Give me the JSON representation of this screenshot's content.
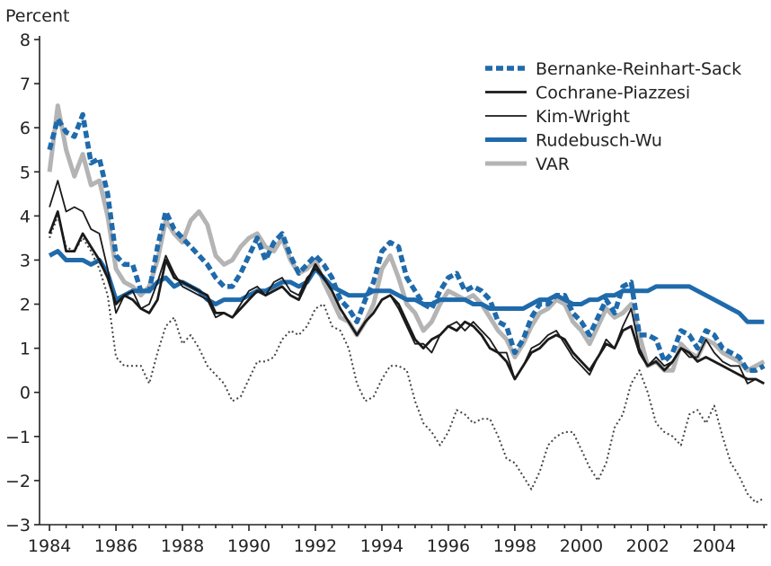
{
  "chart_data": {
    "type": "line",
    "ylabel": "Percent",
    "xlabel": "",
    "title": "",
    "ylim": [
      -3,
      8
    ],
    "xlim": [
      1983.7,
      2005.6
    ],
    "yticks": [
      -3,
      -2,
      -1,
      0,
      1,
      2,
      3,
      4,
      5,
      6,
      7,
      8
    ],
    "ytick_labels": [
      "−3",
      "−2",
      "−1",
      "0",
      "1",
      "2",
      "3",
      "4",
      "5",
      "6",
      "7",
      "8"
    ],
    "xticks": [
      1984,
      1986,
      1988,
      1990,
      1992,
      1994,
      1996,
      1998,
      2000,
      2002,
      2004
    ],
    "xtick_labels": [
      "1984",
      "1986",
      "1988",
      "1990",
      "1992",
      "1994",
      "1996",
      "1998",
      "2000",
      "2002",
      "2004"
    ],
    "legend_position": "top-right",
    "series": [
      {
        "name": "Bernanke-Reinhart-Sack",
        "color": "#1f6aab",
        "style": "dashed",
        "x": [
          1984.0,
          1984.25,
          1984.5,
          1984.75,
          1985.0,
          1985.25,
          1985.5,
          1985.75,
          1986.0,
          1986.25,
          1986.5,
          1986.75,
          1987.0,
          1987.25,
          1987.5,
          1987.75,
          1988.0,
          1988.25,
          1988.5,
          1988.75,
          1989.0,
          1989.25,
          1989.5,
          1989.75,
          1990.0,
          1990.25,
          1990.5,
          1990.75,
          1991.0,
          1991.25,
          1991.5,
          1991.75,
          1992.0,
          1992.25,
          1992.5,
          1992.75,
          1993.0,
          1993.25,
          1993.5,
          1993.75,
          1994.0,
          1994.25,
          1994.5,
          1994.75,
          1995.0,
          1995.25,
          1995.5,
          1995.75,
          1996.0,
          1996.25,
          1996.5,
          1996.75,
          1997.0,
          1997.25,
          1997.5,
          1997.75,
          1998.0,
          1998.25,
          1998.5,
          1998.75,
          1999.0,
          1999.25,
          1999.5,
          1999.75,
          2000.0,
          2000.25,
          2000.5,
          2000.75,
          2001.0,
          2001.25,
          2001.5,
          2001.75,
          2002.0,
          2002.25,
          2002.5,
          2002.75,
          2003.0,
          2003.25,
          2003.5,
          2003.75,
          2004.0,
          2004.25,
          2004.5,
          2004.75,
          2005.0,
          2005.25,
          2005.5
        ],
        "values": [
          5.5,
          6.2,
          5.9,
          5.8,
          6.3,
          5.2,
          5.3,
          4.5,
          3.1,
          2.9,
          2.9,
          2.3,
          2.3,
          3.3,
          4.1,
          3.7,
          3.5,
          3.3,
          3.1,
          2.9,
          2.6,
          2.4,
          2.4,
          2.7,
          3.1,
          3.5,
          3.0,
          3.4,
          3.6,
          3.1,
          2.7,
          2.9,
          3.1,
          2.9,
          2.6,
          2.1,
          1.9,
          1.6,
          2.1,
          2.5,
          3.2,
          3.4,
          3.3,
          2.6,
          2.3,
          2.0,
          1.9,
          2.3,
          2.6,
          2.7,
          2.3,
          2.4,
          2.3,
          2.1,
          1.6,
          1.5,
          0.9,
          1.2,
          1.7,
          2.0,
          2.0,
          2.2,
          2.2,
          1.8,
          1.6,
          1.3,
          1.7,
          2.1,
          1.8,
          2.4,
          2.5,
          1.3,
          1.3,
          1.2,
          0.7,
          0.9,
          1.4,
          1.3,
          1.0,
          1.4,
          1.3,
          1.0,
          0.9,
          0.8,
          0.5,
          0.5,
          0.6
        ]
      },
      {
        "name": "Cochrane-Piazzesi",
        "color": "#1a1a1a",
        "style": "solid-medium",
        "x": [
          1984.0,
          1984.25,
          1984.5,
          1984.75,
          1985.0,
          1985.25,
          1985.5,
          1985.75,
          1986.0,
          1986.25,
          1986.5,
          1986.75,
          1987.0,
          1987.25,
          1987.5,
          1987.75,
          1988.0,
          1988.25,
          1988.5,
          1988.75,
          1989.0,
          1989.25,
          1989.5,
          1989.75,
          1990.0,
          1990.25,
          1990.5,
          1990.75,
          1991.0,
          1991.25,
          1991.5,
          1991.75,
          1992.0,
          1992.25,
          1992.5,
          1992.75,
          1993.0,
          1993.25,
          1993.5,
          1993.75,
          1994.0,
          1994.25,
          1994.5,
          1994.75,
          1995.0,
          1995.25,
          1995.5,
          1995.75,
          1996.0,
          1996.25,
          1996.5,
          1996.75,
          1997.0,
          1997.25,
          1997.5,
          1997.75,
          1998.0,
          1998.25,
          1998.5,
          1998.75,
          1999.0,
          1999.25,
          1999.5,
          1999.75,
          2000.0,
          2000.25,
          2000.5,
          2000.75,
          2001.0,
          2001.25,
          2001.5,
          2001.75,
          2002.0,
          2002.25,
          2002.5,
          2002.75,
          2003.0,
          2003.25,
          2003.5,
          2003.75,
          2004.0,
          2004.25,
          2004.5,
          2004.75,
          2005.0,
          2005.25,
          2005.5
        ],
        "values": [
          3.6,
          4.1,
          3.2,
          3.2,
          3.6,
          3.3,
          3.0,
          2.6,
          2.0,
          2.2,
          2.1,
          1.9,
          1.8,
          2.1,
          3.0,
          2.6,
          2.5,
          2.4,
          2.3,
          2.2,
          1.8,
          1.8,
          1.7,
          1.9,
          2.1,
          2.3,
          2.2,
          2.3,
          2.4,
          2.2,
          2.1,
          2.5,
          2.9,
          2.6,
          2.3,
          1.9,
          1.6,
          1.3,
          1.6,
          1.8,
          2.1,
          2.2,
          2.0,
          1.6,
          1.2,
          1.0,
          1.2,
          1.3,
          1.5,
          1.4,
          1.6,
          1.5,
          1.3,
          1.0,
          0.9,
          0.7,
          0.3,
          0.6,
          0.9,
          1.0,
          1.2,
          1.3,
          1.2,
          0.9,
          0.7,
          0.5,
          0.8,
          1.1,
          1.0,
          1.4,
          1.5,
          0.9,
          0.6,
          0.7,
          0.5,
          0.7,
          1.0,
          0.9,
          0.7,
          0.8,
          0.7,
          0.6,
          0.5,
          0.4,
          0.3,
          0.3,
          0.2
        ]
      },
      {
        "name": "Kim-Wright",
        "color": "#1a1a1a",
        "style": "solid-thin",
        "x": [
          1984.0,
          1984.25,
          1984.5,
          1984.75,
          1985.0,
          1985.25,
          1985.5,
          1985.75,
          1986.0,
          1986.25,
          1986.5,
          1986.75,
          1987.0,
          1987.25,
          1987.5,
          1987.75,
          1988.0,
          1988.25,
          1988.5,
          1988.75,
          1989.0,
          1989.25,
          1989.5,
          1989.75,
          1990.0,
          1990.25,
          1990.5,
          1990.75,
          1991.0,
          1991.25,
          1991.5,
          1991.75,
          1992.0,
          1992.25,
          1992.5,
          1992.75,
          1993.0,
          1993.25,
          1993.5,
          1993.75,
          1994.0,
          1994.25,
          1994.5,
          1994.75,
          1995.0,
          1995.25,
          1995.5,
          1995.75,
          1996.0,
          1996.25,
          1996.5,
          1996.75,
          1997.0,
          1997.25,
          1997.5,
          1997.75,
          1998.0,
          1998.25,
          1998.5,
          1998.75,
          1999.0,
          1999.25,
          1999.5,
          1999.75,
          2000.0,
          2000.25,
          2000.5,
          2000.75,
          2001.0,
          2001.25,
          2001.5,
          2001.75,
          2002.0,
          2002.25,
          2002.5,
          2002.75,
          2003.0,
          2003.25,
          2003.5,
          2003.75,
          2004.0,
          2004.25,
          2004.5,
          2004.75,
          2005.0,
          2005.25,
          2005.5
        ],
        "values": [
          4.2,
          4.8,
          4.1,
          4.2,
          4.1,
          3.7,
          3.6,
          2.8,
          1.8,
          2.2,
          2.3,
          1.9,
          2.0,
          2.5,
          3.1,
          2.7,
          2.4,
          2.3,
          2.2,
          2.1,
          1.7,
          1.8,
          1.7,
          2.0,
          2.3,
          2.4,
          2.2,
          2.5,
          2.6,
          2.3,
          2.2,
          2.6,
          2.8,
          2.6,
          2.3,
          1.9,
          1.6,
          1.3,
          1.6,
          1.8,
          2.1,
          2.2,
          1.9,
          1.5,
          1.1,
          1.1,
          0.9,
          1.3,
          1.5,
          1.6,
          1.4,
          1.6,
          1.4,
          1.2,
          0.9,
          0.9,
          0.3,
          0.6,
          1.0,
          1.1,
          1.3,
          1.4,
          1.1,
          0.8,
          0.6,
          0.4,
          0.8,
          1.2,
          1.0,
          1.5,
          1.9,
          1.0,
          0.6,
          0.8,
          0.6,
          0.7,
          1.0,
          0.8,
          0.8,
          1.2,
          0.9,
          0.7,
          0.6,
          0.6,
          0.2,
          0.3,
          0.2
        ]
      },
      {
        "name": "Rudebusch-Wu",
        "color": "#1f6aab",
        "style": "solid-thick",
        "x": [
          1984.0,
          1984.25,
          1984.5,
          1984.75,
          1985.0,
          1985.25,
          1985.5,
          1985.75,
          1986.0,
          1986.25,
          1986.5,
          1986.75,
          1987.0,
          1987.25,
          1987.5,
          1987.75,
          1988.0,
          1988.25,
          1988.5,
          1988.75,
          1989.0,
          1989.25,
          1989.5,
          1989.75,
          1990.0,
          1990.25,
          1990.5,
          1990.75,
          1991.0,
          1991.25,
          1991.5,
          1991.75,
          1992.0,
          1992.25,
          1992.5,
          1992.75,
          1993.0,
          1993.25,
          1993.5,
          1993.75,
          1994.0,
          1994.25,
          1994.5,
          1994.75,
          1995.0,
          1995.25,
          1995.5,
          1995.75,
          1996.0,
          1996.25,
          1996.5,
          1996.75,
          1997.0,
          1997.25,
          1997.5,
          1997.75,
          1998.0,
          1998.25,
          1998.5,
          1998.75,
          1999.0,
          1999.25,
          1999.5,
          1999.75,
          2000.0,
          2000.25,
          2000.5,
          2000.75,
          2001.0,
          2001.25,
          2001.5,
          2001.75,
          2002.0,
          2002.25,
          2002.5,
          2002.75,
          2003.0,
          2003.25,
          2003.5,
          2003.75,
          2004.0,
          2004.25,
          2004.5,
          2004.75,
          2005.0,
          2005.25,
          2005.5
        ],
        "values": [
          3.1,
          3.2,
          3.0,
          3.0,
          3.0,
          2.9,
          3.0,
          2.7,
          2.1,
          2.2,
          2.3,
          2.3,
          2.3,
          2.5,
          2.6,
          2.4,
          2.5,
          2.4,
          2.3,
          2.1,
          2.0,
          2.1,
          2.1,
          2.1,
          2.2,
          2.3,
          2.3,
          2.4,
          2.5,
          2.5,
          2.4,
          2.5,
          2.8,
          2.6,
          2.4,
          2.3,
          2.2,
          2.2,
          2.2,
          2.3,
          2.3,
          2.3,
          2.2,
          2.1,
          2.1,
          2.0,
          2.0,
          2.1,
          2.1,
          2.1,
          2.1,
          2.0,
          2.0,
          1.9,
          1.9,
          1.9,
          1.9,
          1.9,
          2.0,
          2.1,
          2.1,
          2.2,
          2.1,
          2.0,
          2.0,
          2.1,
          2.1,
          2.2,
          2.2,
          2.3,
          2.3,
          2.3,
          2.3,
          2.4,
          2.4,
          2.4,
          2.4,
          2.4,
          2.3,
          2.2,
          2.1,
          2.0,
          1.9,
          1.8,
          1.6,
          1.6,
          1.6
        ]
      },
      {
        "name": "VAR",
        "color": "#b4b4b4",
        "style": "solid-thick",
        "x": [
          1984.0,
          1984.25,
          1984.5,
          1984.75,
          1985.0,
          1985.25,
          1985.5,
          1985.75,
          1986.0,
          1986.25,
          1986.5,
          1986.75,
          1987.0,
          1987.25,
          1987.5,
          1987.75,
          1988.0,
          1988.25,
          1988.5,
          1988.75,
          1989.0,
          1989.25,
          1989.5,
          1989.75,
          1990.0,
          1990.25,
          1990.5,
          1990.75,
          1991.0,
          1991.25,
          1991.5,
          1991.75,
          1992.0,
          1992.25,
          1992.5,
          1992.75,
          1993.0,
          1993.25,
          1993.5,
          1993.75,
          1994.0,
          1994.25,
          1994.5,
          1994.75,
          1995.0,
          1995.25,
          1995.5,
          1995.75,
          1996.0,
          1996.25,
          1996.5,
          1996.75,
          1997.0,
          1997.25,
          1997.5,
          1997.75,
          1998.0,
          1998.25,
          1998.5,
          1998.75,
          1999.0,
          1999.25,
          1999.5,
          1999.75,
          2000.0,
          2000.25,
          2000.5,
          2000.75,
          2001.0,
          2001.25,
          2001.5,
          2001.75,
          2002.0,
          2002.25,
          2002.5,
          2002.75,
          2003.0,
          2003.25,
          2003.5,
          2003.75,
          2004.0,
          2004.25,
          2004.5,
          2004.75,
          2005.0,
          2005.25,
          2005.5
        ],
        "values": [
          5.0,
          6.5,
          5.5,
          4.9,
          5.4,
          4.7,
          4.8,
          4.0,
          2.8,
          2.5,
          2.4,
          2.2,
          2.4,
          3.0,
          3.9,
          3.6,
          3.4,
          3.9,
          4.1,
          3.8,
          3.1,
          2.9,
          3.0,
          3.3,
          3.5,
          3.6,
          3.3,
          3.2,
          3.5,
          3.0,
          2.7,
          2.8,
          3.0,
          2.5,
          2.1,
          1.7,
          1.6,
          1.3,
          1.6,
          2.0,
          2.8,
          3.1,
          2.6,
          2.0,
          1.8,
          1.4,
          1.6,
          2.0,
          2.3,
          2.2,
          2.1,
          2.2,
          2.0,
          1.7,
          1.4,
          1.2,
          0.8,
          1.1,
          1.5,
          1.8,
          1.9,
          2.1,
          2.0,
          1.6,
          1.4,
          1.1,
          1.5,
          1.9,
          1.7,
          1.8,
          2.0,
          1.3,
          0.6,
          0.7,
          0.5,
          0.5,
          1.1,
          0.9,
          0.8,
          1.2,
          1.1,
          0.9,
          0.8,
          0.7,
          0.5,
          0.6,
          0.7
        ]
      },
      {
        "name": "",
        "color": "#444444",
        "style": "dotted",
        "x": [
          1984.0,
          1984.25,
          1984.5,
          1984.75,
          1985.0,
          1985.25,
          1985.5,
          1985.75,
          1986.0,
          1986.25,
          1986.5,
          1986.75,
          1987.0,
          1987.25,
          1987.5,
          1987.75,
          1988.0,
          1988.25,
          1988.5,
          1988.75,
          1989.0,
          1989.25,
          1989.5,
          1989.75,
          1990.0,
          1990.25,
          1990.5,
          1990.75,
          1991.0,
          1991.25,
          1991.5,
          1991.75,
          1992.0,
          1992.25,
          1992.5,
          1992.75,
          1993.0,
          1993.25,
          1993.5,
          1993.75,
          1994.0,
          1994.25,
          1994.5,
          1994.75,
          1995.0,
          1995.25,
          1995.5,
          1995.75,
          1996.0,
          1996.25,
          1996.5,
          1996.75,
          1997.0,
          1997.25,
          1997.5,
          1997.75,
          1998.0,
          1998.25,
          1998.5,
          1998.75,
          1999.0,
          1999.25,
          1999.5,
          1999.75,
          2000.0,
          2000.25,
          2000.5,
          2000.75,
          2001.0,
          2001.25,
          2001.5,
          2001.75,
          2002.0,
          2002.25,
          2002.5,
          2002.75,
          2003.0,
          2003.25,
          2003.5,
          2003.75,
          2004.0,
          2004.25,
          2004.5,
          2004.75,
          2005.0,
          2005.25,
          2005.5
        ],
        "values": [
          3.5,
          4.0,
          3.3,
          3.2,
          3.5,
          3.2,
          2.8,
          2.2,
          0.8,
          0.6,
          0.6,
          0.6,
          0.2,
          0.9,
          1.5,
          1.7,
          1.1,
          1.3,
          1.0,
          0.6,
          0.4,
          0.2,
          -0.2,
          -0.1,
          0.3,
          0.7,
          0.7,
          0.8,
          1.2,
          1.4,
          1.3,
          1.5,
          1.9,
          2.0,
          1.5,
          1.4,
          1.0,
          0.2,
          -0.2,
          -0.1,
          0.3,
          0.6,
          0.6,
          0.5,
          -0.2,
          -0.7,
          -0.9,
          -1.2,
          -0.9,
          -0.4,
          -0.5,
          -0.7,
          -0.6,
          -0.6,
          -1.0,
          -1.5,
          -1.6,
          -1.9,
          -2.2,
          -1.8,
          -1.2,
          -1.0,
          -0.9,
          -0.9,
          -1.3,
          -1.7,
          -2.0,
          -1.6,
          -0.8,
          -0.5,
          0.2,
          0.5,
          0.0,
          -0.7,
          -0.9,
          -1.0,
          -1.2,
          -0.5,
          -0.4,
          -0.7,
          -0.3,
          -1.0,
          -1.6,
          -1.9,
          -2.3,
          -2.5,
          -2.4
        ]
      }
    ]
  }
}
